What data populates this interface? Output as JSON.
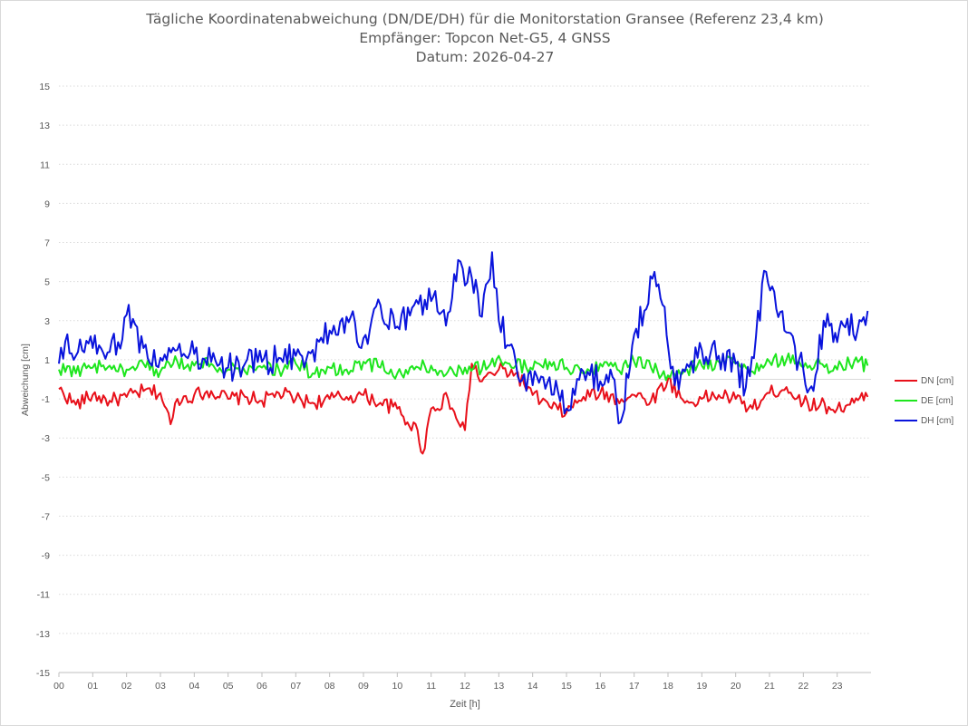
{
  "chart_data": {
    "type": "line",
    "title_lines": [
      "Tägliche Koordinatenabweichung (DN/DE/DH) für die Monitorstation Gransee (Referenz 23,4 km)",
      "Empfänger: Topcon Net-G5, 4 GNSS",
      "Datum: 2026-04-27"
    ],
    "xlabel": "Zeit [h]",
    "ylabel": "Abweichung [cm]",
    "xlim": [
      0,
      24
    ],
    "ylim": [
      -15,
      15
    ],
    "x_ticks": [
      "00",
      "01",
      "02",
      "03",
      "04",
      "05",
      "06",
      "07",
      "08",
      "09",
      "10",
      "11",
      "12",
      "13",
      "14",
      "15",
      "16",
      "17",
      "18",
      "19",
      "20",
      "21",
      "22",
      "23"
    ],
    "y_ticks": [
      15,
      13,
      11,
      9,
      7,
      5,
      3,
      1,
      -1,
      -3,
      -5,
      -7,
      -9,
      -11,
      -13,
      -15
    ],
    "grid": "horizontal dotted",
    "legend_position": "right",
    "series": [
      {
        "name": "DN [cm]",
        "color": "#e8101a",
        "x": [
          0,
          0.5,
          1,
          1.5,
          2,
          2.5,
          3,
          3.3,
          3.5,
          4,
          4.5,
          5,
          5.5,
          6,
          6.5,
          7,
          7.5,
          8,
          8.5,
          9,
          9.5,
          10,
          10.3,
          10.6,
          10.75,
          11,
          11.5,
          11.8,
          12,
          12.2,
          12.5,
          13,
          13.5,
          14,
          14.5,
          15,
          15.5,
          16,
          16.5,
          17,
          17.5,
          18,
          18.5,
          19,
          19.5,
          20,
          20.5,
          21,
          21.5,
          22,
          22.5,
          23,
          23.5,
          23.9
        ],
        "y": [
          -0.5,
          -1.3,
          -0.8,
          -1.1,
          -0.9,
          -0.6,
          -0.7,
          -2.3,
          -1.0,
          -0.8,
          -0.6,
          -1.0,
          -0.9,
          -1.1,
          -0.7,
          -1.0,
          -1.2,
          -1.0,
          -0.9,
          -0.8,
          -1.2,
          -1.5,
          -2.2,
          -2.6,
          -3.8,
          -1.5,
          -1.0,
          -2.2,
          -2.6,
          0.8,
          -0.1,
          0.5,
          0.3,
          -0.8,
          -1.4,
          -1.7,
          -0.9,
          -0.7,
          -1.0,
          -0.8,
          -1.1,
          0.0,
          -1.2,
          -1.0,
          -0.8,
          -1.0,
          -1.5,
          -0.7,
          -0.4,
          -1.2,
          -1.3,
          -1.5,
          -1.2,
          -0.9
        ]
      },
      {
        "name": "DE [cm]",
        "color": "#1ee61e",
        "x": [
          0,
          0.5,
          1,
          1.5,
          2,
          2.5,
          3,
          3.5,
          4,
          4.5,
          5,
          5.5,
          6,
          6.5,
          7,
          7.5,
          8,
          8.5,
          9,
          9.5,
          10,
          10.5,
          11,
          11.5,
          12,
          12.5,
          13,
          13.5,
          14,
          14.5,
          15,
          15.5,
          16,
          16.5,
          17,
          17.5,
          18,
          18.5,
          19,
          19.5,
          20,
          20.5,
          21,
          21.5,
          22,
          22.5,
          23,
          23.5,
          23.9
        ],
        "y": [
          0.5,
          0.3,
          0.6,
          0.7,
          0.5,
          0.8,
          0.4,
          0.9,
          0.7,
          0.8,
          0.5,
          0.4,
          0.6,
          0.5,
          0.8,
          0.3,
          0.6,
          0.5,
          0.9,
          0.6,
          0.3,
          0.5,
          0.7,
          0.4,
          0.6,
          0.5,
          1.2,
          0.7,
          0.5,
          0.9,
          0.6,
          0.3,
          0.8,
          0.5,
          0.9,
          0.6,
          0.2,
          0.5,
          0.7,
          0.9,
          0.8,
          0.4,
          0.9,
          1.0,
          0.6,
          0.8,
          0.5,
          0.9,
          0.7
        ]
      },
      {
        "name": "DH [cm]",
        "color": "#0a14dc",
        "x": [
          0,
          0.25,
          0.5,
          1,
          1.5,
          1.75,
          2,
          2.5,
          3,
          3.5,
          4,
          4.5,
          5,
          5.5,
          6,
          6.5,
          7,
          7.5,
          8,
          8.5,
          9,
          9.5,
          10,
          10.5,
          11,
          11.5,
          11.8,
          12,
          12.2,
          12.5,
          12.8,
          13,
          13.5,
          14,
          14.5,
          15,
          15.5,
          16,
          16.3,
          16.6,
          17,
          17.3,
          17.6,
          17.9,
          18.2,
          18.5,
          19,
          19.5,
          20,
          20.3,
          20.6,
          20.9,
          21.2,
          21.5,
          22,
          22.3,
          22.6,
          23,
          23.3,
          23.6,
          23.9
        ],
        "y": [
          0.8,
          2.3,
          1.2,
          1.6,
          1.4,
          1.9,
          3.3,
          1.6,
          1.1,
          1.5,
          1.3,
          0.9,
          0.6,
          0.8,
          0.9,
          1.1,
          1.2,
          1.5,
          2.5,
          3.2,
          2.1,
          3.8,
          2.7,
          3.8,
          4.0,
          3.4,
          6.1,
          4.8,
          5.2,
          3.2,
          6.5,
          3.0,
          0.9,
          -0.3,
          0.1,
          -1.5,
          0.4,
          -0.1,
          0.5,
          -2.2,
          2.3,
          3.5,
          5.5,
          3.7,
          -0.3,
          0.4,
          1.5,
          1.2,
          0.8,
          -0.4,
          2.2,
          5.5,
          3.6,
          2.4,
          0.5,
          -0.6,
          3.0,
          1.9,
          3.1,
          2.5,
          3.5
        ]
      }
    ]
  }
}
